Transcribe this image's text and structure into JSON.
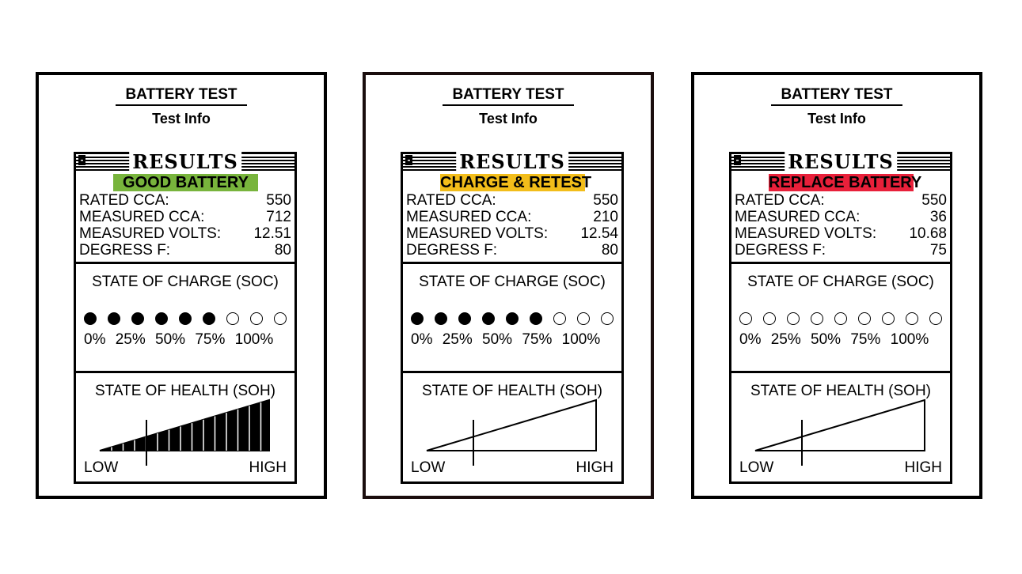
{
  "panels": [
    {
      "title": "BATTERY TEST",
      "subtitle": "Test Info",
      "results_label": "RESULTS",
      "status": {
        "label": "GOOD BATTERY",
        "color": "#78b43c"
      },
      "readings": [
        {
          "label": "RATED CCA:",
          "value": "550"
        },
        {
          "label": "MEASURED CCA:",
          "value": "712"
        },
        {
          "label": "MEASURED VOLTS:",
          "value": "12.51"
        },
        {
          "label": "DEGRESS F:",
          "value": "80"
        }
      ],
      "soc": {
        "title": "STATE OF CHARGE  (SOC)",
        "filled": 6,
        "total": 9,
        "labels": "0% 25% 50% 75% 100%"
      },
      "soh": {
        "title": "STATE OF HEALTH  (SOH)",
        "low": "LOW",
        "high": "HIGH",
        "level": 1.0
      }
    },
    {
      "title": "BATTERY TEST",
      "subtitle": "Test Info",
      "results_label": "RESULTS",
      "status": {
        "label": "CHARGE & RETEST",
        "color": "#f2bd1a"
      },
      "readings": [
        {
          "label": "RATED CCA:",
          "value": "550"
        },
        {
          "label": "MEASURED CCA:",
          "value": "210"
        },
        {
          "label": "MEASURED VOLTS:",
          "value": "12.54"
        },
        {
          "label": "DEGRESS F:",
          "value": "80"
        }
      ],
      "soc": {
        "title": "STATE OF CHARGE  (SOC)",
        "filled": 6,
        "total": 9,
        "labels": "0% 25% 50% 75% 100%"
      },
      "soh": {
        "title": "STATE OF HEALTH  (SOH)",
        "low": "LOW",
        "high": "HIGH",
        "level": 0.0
      }
    },
    {
      "title": "BATTERY TEST",
      "subtitle": "Test Info",
      "results_label": "RESULTS",
      "status": {
        "label": "REPLACE BATTERY",
        "color": "#e8203a"
      },
      "readings": [
        {
          "label": "RATED CCA:",
          "value": "550"
        },
        {
          "label": "MEASURED CCA:",
          "value": "36"
        },
        {
          "label": "MEASURED VOLTS:",
          "value": "10.68"
        },
        {
          "label": "DEGRESS F:",
          "value": "75"
        }
      ],
      "soc": {
        "title": "STATE OF CHARGE  (SOC)",
        "filled": 0,
        "total": 9,
        "labels": "0% 25% 50% 75% 100%"
      },
      "soh": {
        "title": "STATE OF HEALTH  (SOH)",
        "low": "LOW",
        "high": "HIGH",
        "level": 0.0
      }
    }
  ]
}
